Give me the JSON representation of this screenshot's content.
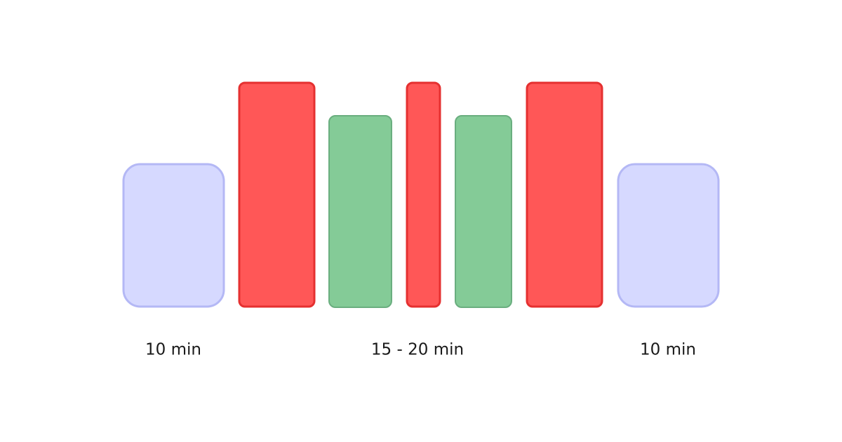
{
  "labels": [
    "10 min",
    "15 - 20 min",
    "10 min"
  ]
}
